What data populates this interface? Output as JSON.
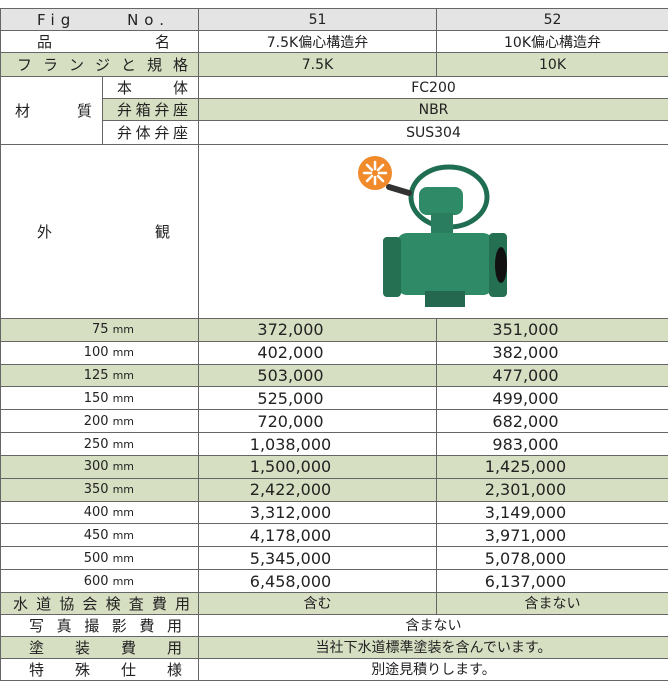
{
  "header": {
    "label": "Fig No.",
    "columns": [
      "51",
      "52"
    ]
  },
  "name_row": {
    "label": "品名",
    "values": [
      "7.5K偏心構造弁",
      "10K偏心構造弁"
    ]
  },
  "flange_row": {
    "label": "フランジと規格",
    "values": [
      "7.5K",
      "10K"
    ]
  },
  "material": {
    "label": "材質",
    "rows": [
      {
        "part": "本体",
        "value": "FC200"
      },
      {
        "part": "弁箱弁座",
        "value": "NBR"
      },
      {
        "part": "弁体弁座",
        "value": "SUS304"
      }
    ]
  },
  "appearance": {
    "label": "外観"
  },
  "prices": {
    "unit": "mm",
    "rows": [
      {
        "size": "75",
        "values": [
          "372,000",
          "351,000"
        ]
      },
      {
        "size": "100",
        "values": [
          "402,000",
          "382,000"
        ]
      },
      {
        "size": "125",
        "values": [
          "503,000",
          "477,000"
        ]
      },
      {
        "size": "150",
        "values": [
          "525,000",
          "499,000"
        ]
      },
      {
        "size": "200",
        "values": [
          "720,000",
          "682,000"
        ]
      },
      {
        "size": "250",
        "values": [
          "1,038,000",
          "983,000"
        ]
      },
      {
        "size": "300",
        "values": [
          "1,500,000",
          "1,425,000"
        ]
      },
      {
        "size": "350",
        "values": [
          "2,422,000",
          "2,301,000"
        ]
      },
      {
        "size": "400",
        "values": [
          "3,312,000",
          "3,149,000"
        ]
      },
      {
        "size": "450",
        "values": [
          "4,178,000",
          "3,971,000"
        ]
      },
      {
        "size": "500",
        "values": [
          "5,345,000",
          "5,078,000"
        ]
      },
      {
        "size": "600",
        "values": [
          "6,458,000",
          "6,137,000"
        ]
      }
    ]
  },
  "inspection": {
    "label": "水道協会検査費用",
    "values": [
      "含む",
      "含まない"
    ]
  },
  "photo": {
    "label": "写真撮影費用",
    "value": "含まない"
  },
  "coating": {
    "label": "塗装費用",
    "value": "当社下水道標準塗装を含んでいます。"
  },
  "special": {
    "label": "特殊仕様",
    "value": "別途見積りします。"
  }
}
